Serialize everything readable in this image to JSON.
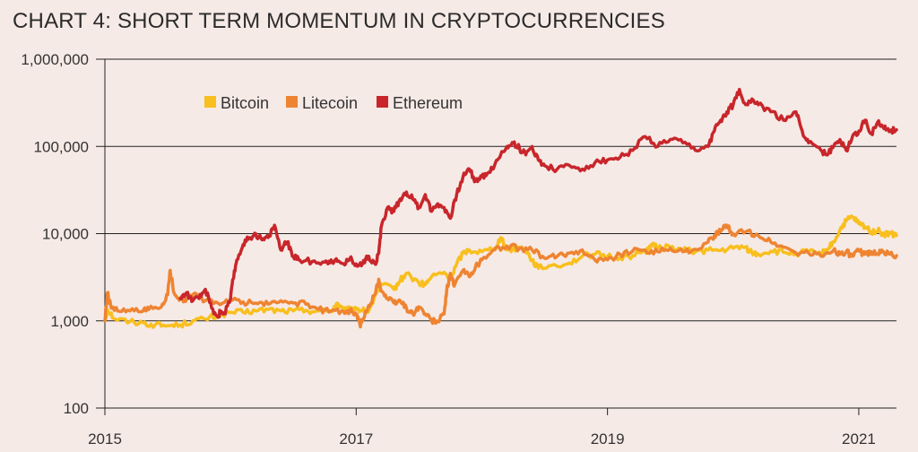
{
  "chart_data": {
    "type": "line",
    "title": "CHART 4: SHORT TERM MOMENTUM IN CRYPTOCURRENCIES",
    "xlabel": "",
    "ylabel": "",
    "y_scale": "log",
    "ylim": [
      100,
      1000000
    ],
    "xlim": [
      2015.0,
      2021.3
    ],
    "y_ticks": [
      {
        "value": 100,
        "label": "100"
      },
      {
        "value": 1000,
        "label": "1,000"
      },
      {
        "value": 10000,
        "label": "10,000"
      },
      {
        "value": 100000,
        "label": "100,000"
      },
      {
        "value": 1000000,
        "label": "1,000,000"
      }
    ],
    "x_ticks": [
      {
        "value": 2015,
        "label": "2015"
      },
      {
        "value": 2017,
        "label": "2017"
      },
      {
        "value": 2019,
        "label": "2019"
      },
      {
        "value": 2021,
        "label": "2021"
      }
    ],
    "grid": "horizontal",
    "legend_position": "top-left",
    "series": [
      {
        "name": "Bitcoin",
        "color": "#f8bf1e",
        "points": [
          [
            2015.0,
            1000
          ],
          [
            2015.02,
            1350
          ],
          [
            2015.08,
            1050
          ],
          [
            2015.2,
            980
          ],
          [
            2015.3,
            950
          ],
          [
            2015.4,
            900
          ],
          [
            2015.5,
            880
          ],
          [
            2015.6,
            900
          ],
          [
            2015.7,
            1000
          ],
          [
            2015.8,
            1050
          ],
          [
            2015.9,
            1150
          ],
          [
            2016.0,
            1250
          ],
          [
            2016.1,
            1250
          ],
          [
            2016.2,
            1300
          ],
          [
            2016.3,
            1350
          ],
          [
            2016.4,
            1300
          ],
          [
            2016.5,
            1300
          ],
          [
            2016.6,
            1320
          ],
          [
            2016.7,
            1300
          ],
          [
            2016.8,
            1300
          ],
          [
            2016.85,
            1600
          ],
          [
            2016.9,
            1300
          ],
          [
            2016.95,
            1350
          ],
          [
            2017.0,
            1400
          ],
          [
            2017.05,
            1300
          ],
          [
            2017.1,
            1300
          ],
          [
            2017.2,
            2600
          ],
          [
            2017.3,
            2300
          ],
          [
            2017.35,
            2900
          ],
          [
            2017.4,
            3500
          ],
          [
            2017.5,
            2700
          ],
          [
            2017.55,
            2600
          ],
          [
            2017.6,
            3200
          ],
          [
            2017.7,
            3600
          ],
          [
            2017.75,
            3000
          ],
          [
            2017.8,
            4500
          ],
          [
            2017.85,
            6000
          ],
          [
            2017.9,
            6500
          ],
          [
            2018.0,
            6200
          ],
          [
            2018.1,
            6800
          ],
          [
            2018.15,
            9000
          ],
          [
            2018.2,
            6500
          ],
          [
            2018.3,
            7000
          ],
          [
            2018.35,
            6500
          ],
          [
            2018.4,
            5000
          ],
          [
            2018.45,
            4000
          ],
          [
            2018.55,
            4300
          ],
          [
            2018.7,
            4600
          ],
          [
            2018.8,
            5500
          ],
          [
            2018.9,
            5800
          ],
          [
            2019.0,
            5500
          ],
          [
            2019.1,
            5300
          ],
          [
            2019.2,
            5600
          ],
          [
            2019.3,
            6200
          ],
          [
            2019.35,
            7500
          ],
          [
            2019.4,
            6800
          ],
          [
            2019.5,
            7000
          ],
          [
            2019.6,
            6500
          ],
          [
            2019.7,
            6200
          ],
          [
            2019.8,
            6500
          ],
          [
            2019.9,
            6400
          ],
          [
            2020.0,
            6800
          ],
          [
            2020.1,
            7000
          ],
          [
            2020.15,
            6000
          ],
          [
            2020.2,
            5800
          ],
          [
            2020.3,
            6300
          ],
          [
            2020.4,
            6100
          ],
          [
            2020.5,
            5900
          ],
          [
            2020.6,
            6200
          ],
          [
            2020.7,
            5800
          ],
          [
            2020.75,
            6500
          ],
          [
            2020.8,
            8000
          ],
          [
            2020.85,
            11000
          ],
          [
            2020.9,
            14000
          ],
          [
            2020.95,
            15500
          ],
          [
            2021.0,
            13000
          ],
          [
            2021.05,
            12000
          ],
          [
            2021.1,
            10500
          ],
          [
            2021.15,
            10800
          ],
          [
            2021.2,
            9800
          ],
          [
            2021.25,
            10000
          ],
          [
            2021.3,
            9500
          ]
        ]
      },
      {
        "name": "Litecoin",
        "color": "#ee8432",
        "points": [
          [
            2015.0,
            1000
          ],
          [
            2015.02,
            2100
          ],
          [
            2015.05,
            1400
          ],
          [
            2015.1,
            1300
          ],
          [
            2015.2,
            1300
          ],
          [
            2015.3,
            1280
          ],
          [
            2015.35,
            1350
          ],
          [
            2015.45,
            1450
          ],
          [
            2015.5,
            2000
          ],
          [
            2015.52,
            3800
          ],
          [
            2015.55,
            2100
          ],
          [
            2015.6,
            1800
          ],
          [
            2015.65,
            1750
          ],
          [
            2015.7,
            2000
          ],
          [
            2015.8,
            1700
          ],
          [
            2015.9,
            1600
          ],
          [
            2016.0,
            1700
          ],
          [
            2016.1,
            1650
          ],
          [
            2016.2,
            1600
          ],
          [
            2016.3,
            1550
          ],
          [
            2016.4,
            1700
          ],
          [
            2016.5,
            1600
          ],
          [
            2016.6,
            1550
          ],
          [
            2016.7,
            1350
          ],
          [
            2016.8,
            1300
          ],
          [
            2016.9,
            1280
          ],
          [
            2016.95,
            1300
          ],
          [
            2017.0,
            1200
          ],
          [
            2017.03,
            900
          ],
          [
            2017.05,
            1000
          ],
          [
            2017.1,
            1500
          ],
          [
            2017.15,
            2000
          ],
          [
            2017.18,
            3000
          ],
          [
            2017.2,
            2200
          ],
          [
            2017.25,
            1800
          ],
          [
            2017.3,
            1600
          ],
          [
            2017.35,
            1700
          ],
          [
            2017.4,
            1400
          ],
          [
            2017.45,
            1200
          ],
          [
            2017.5,
            1450
          ],
          [
            2017.55,
            1200
          ],
          [
            2017.6,
            1000
          ],
          [
            2017.65,
            980
          ],
          [
            2017.7,
            1200
          ],
          [
            2017.72,
            2200
          ],
          [
            2017.75,
            3500
          ],
          [
            2017.78,
            2500
          ],
          [
            2017.85,
            3800
          ],
          [
            2017.9,
            3200
          ],
          [
            2017.95,
            4200
          ],
          [
            2018.0,
            5000
          ],
          [
            2018.1,
            6500
          ],
          [
            2018.2,
            7200
          ],
          [
            2018.3,
            6800
          ],
          [
            2018.4,
            6500
          ],
          [
            2018.5,
            5200
          ],
          [
            2018.6,
            5500
          ],
          [
            2018.7,
            6000
          ],
          [
            2018.8,
            6500
          ],
          [
            2018.9,
            5000
          ],
          [
            2019.0,
            5000
          ],
          [
            2019.1,
            5800
          ],
          [
            2019.2,
            6300
          ],
          [
            2019.3,
            6500
          ],
          [
            2019.4,
            6200
          ],
          [
            2019.5,
            6800
          ],
          [
            2019.6,
            6200
          ],
          [
            2019.7,
            6600
          ],
          [
            2019.8,
            8000
          ],
          [
            2019.85,
            9500
          ],
          [
            2019.9,
            10500
          ],
          [
            2019.95,
            12500
          ],
          [
            2020.0,
            10000
          ],
          [
            2020.1,
            10500
          ],
          [
            2020.2,
            9500
          ],
          [
            2020.3,
            8000
          ],
          [
            2020.4,
            7000
          ],
          [
            2020.5,
            6000
          ],
          [
            2020.6,
            6000
          ],
          [
            2020.7,
            5500
          ],
          [
            2020.8,
            6500
          ],
          [
            2020.85,
            5800
          ],
          [
            2020.9,
            6200
          ],
          [
            2020.95,
            5500
          ],
          [
            2021.0,
            6300
          ],
          [
            2021.05,
            5800
          ],
          [
            2021.1,
            6200
          ],
          [
            2021.15,
            5900
          ],
          [
            2021.2,
            6100
          ],
          [
            2021.25,
            5800
          ],
          [
            2021.3,
            5600
          ]
        ]
      },
      {
        "name": "Ethereum",
        "color": "#c8262b",
        "points": [
          [
            2015.6,
            1800
          ],
          [
            2015.65,
            2100
          ],
          [
            2015.7,
            1700
          ],
          [
            2015.75,
            1800
          ],
          [
            2015.8,
            2300
          ],
          [
            2015.85,
            1400
          ],
          [
            2015.9,
            1100
          ],
          [
            2015.92,
            1300
          ],
          [
            2015.95,
            1200
          ],
          [
            2016.0,
            1800
          ],
          [
            2016.02,
            3000
          ],
          [
            2016.05,
            5000
          ],
          [
            2016.1,
            7500
          ],
          [
            2016.15,
            9000
          ],
          [
            2016.2,
            10000
          ],
          [
            2016.25,
            8500
          ],
          [
            2016.3,
            9000
          ],
          [
            2016.35,
            12500
          ],
          [
            2016.4,
            6500
          ],
          [
            2016.45,
            8000
          ],
          [
            2016.5,
            5500
          ],
          [
            2016.55,
            5000
          ],
          [
            2016.65,
            4800
          ],
          [
            2016.75,
            4700
          ],
          [
            2016.8,
            5000
          ],
          [
            2016.85,
            4800
          ],
          [
            2016.9,
            4500
          ],
          [
            2016.95,
            5200
          ],
          [
            2017.0,
            4500
          ],
          [
            2017.05,
            4500
          ],
          [
            2017.1,
            5500
          ],
          [
            2017.15,
            4500
          ],
          [
            2017.18,
            6000
          ],
          [
            2017.2,
            12000
          ],
          [
            2017.25,
            20000
          ],
          [
            2017.3,
            18000
          ],
          [
            2017.35,
            25000
          ],
          [
            2017.4,
            30000
          ],
          [
            2017.45,
            25000
          ],
          [
            2017.5,
            20000
          ],
          [
            2017.55,
            28000
          ],
          [
            2017.6,
            18000
          ],
          [
            2017.65,
            22000
          ],
          [
            2017.7,
            20000
          ],
          [
            2017.75,
            15000
          ],
          [
            2017.8,
            28000
          ],
          [
            2017.85,
            45000
          ],
          [
            2017.9,
            55000
          ],
          [
            2017.95,
            40000
          ],
          [
            2018.0,
            45000
          ],
          [
            2018.05,
            50000
          ],
          [
            2018.1,
            60000
          ],
          [
            2018.15,
            80000
          ],
          [
            2018.2,
            100000
          ],
          [
            2018.25,
            110000
          ],
          [
            2018.3,
            95000
          ],
          [
            2018.35,
            80000
          ],
          [
            2018.4,
            100000
          ],
          [
            2018.45,
            70000
          ],
          [
            2018.5,
            60000
          ],
          [
            2018.6,
            55000
          ],
          [
            2018.7,
            60000
          ],
          [
            2018.8,
            55000
          ],
          [
            2018.9,
            65000
          ],
          [
            2019.0,
            70000
          ],
          [
            2019.1,
            75000
          ],
          [
            2019.2,
            90000
          ],
          [
            2019.3,
            130000
          ],
          [
            2019.4,
            100000
          ],
          [
            2019.5,
            120000
          ],
          [
            2019.6,
            110000
          ],
          [
            2019.7,
            90000
          ],
          [
            2019.8,
            100000
          ],
          [
            2019.85,
            150000
          ],
          [
            2019.9,
            200000
          ],
          [
            2019.95,
            250000
          ],
          [
            2020.0,
            300000
          ],
          [
            2020.05,
            450000
          ],
          [
            2020.1,
            300000
          ],
          [
            2020.15,
            350000
          ],
          [
            2020.2,
            300000
          ],
          [
            2020.3,
            250000
          ],
          [
            2020.4,
            200000
          ],
          [
            2020.5,
            250000
          ],
          [
            2020.55,
            150000
          ],
          [
            2020.6,
            110000
          ],
          [
            2020.7,
            90000
          ],
          [
            2020.75,
            80000
          ],
          [
            2020.8,
            100000
          ],
          [
            2020.85,
            120000
          ],
          [
            2020.9,
            90000
          ],
          [
            2020.95,
            130000
          ],
          [
            2021.0,
            150000
          ],
          [
            2021.05,
            200000
          ],
          [
            2021.1,
            140000
          ],
          [
            2021.15,
            190000
          ],
          [
            2021.2,
            160000
          ],
          [
            2021.25,
            150000
          ],
          [
            2021.3,
            155000
          ]
        ]
      }
    ]
  }
}
